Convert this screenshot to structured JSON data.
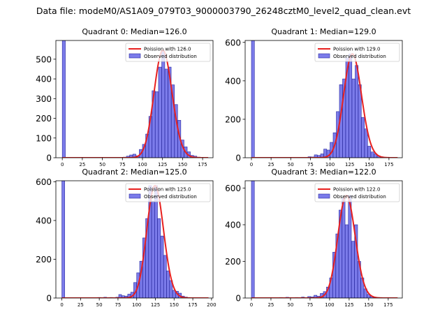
{
  "figure": {
    "title": "Data file: modeM0/AS1A09_079T03_9000003790_26248cztM0_level2_quad_clean.evt"
  },
  "colors": {
    "bar_fill": "#7b7bea",
    "bar_edge": "#2a2aa0",
    "poisson_line": "#e8201f"
  },
  "chart_data": [
    {
      "type": "bar",
      "title": "Quadrant 0: Median=126.0",
      "median": 126.0,
      "legend": {
        "line": "Poission with 126.0",
        "bars": "Observed distribution",
        "loc": "upper right"
      },
      "xlim": [
        -8,
        188
      ],
      "ylim": [
        0,
        595
      ],
      "xticks": [
        0,
        25,
        50,
        75,
        100,
        125,
        150,
        175
      ],
      "yticks": [
        0,
        100,
        200,
        300,
        400,
        500
      ],
      "bin_width": 3.8,
      "bins": [
        [
          0,
          600
        ],
        [
          76,
          3
        ],
        [
          80,
          8
        ],
        [
          84,
          14
        ],
        [
          88,
          18
        ],
        [
          92,
          10
        ],
        [
          96,
          42
        ],
        [
          100,
          68
        ],
        [
          104,
          120
        ],
        [
          108,
          210
        ],
        [
          112,
          340
        ],
        [
          116,
          335
        ],
        [
          120,
          460
        ],
        [
          124,
          545
        ],
        [
          128,
          450
        ],
        [
          132,
          460
        ],
        [
          136,
          370
        ],
        [
          140,
          270
        ],
        [
          144,
          190
        ],
        [
          148,
          90
        ],
        [
          152,
          55
        ],
        [
          156,
          30
        ],
        [
          160,
          12
        ],
        [
          164,
          8
        ],
        [
          168,
          3
        ]
      ]
    },
    {
      "type": "bar",
      "title": "Quadrant 1: Median=129.0",
      "median": 129.0,
      "legend": {
        "line": "Poission with 129.0",
        "bars": "Observed distribution",
        "loc": "upper right"
      },
      "xlim": [
        -8,
        192
      ],
      "ylim": [
        0,
        610
      ],
      "xticks": [
        0,
        25,
        50,
        75,
        100,
        125,
        150,
        175
      ],
      "yticks": [
        0,
        200,
        400,
        600
      ],
      "bin_width": 3.8,
      "bins": [
        [
          0,
          610
        ],
        [
          72,
          5
        ],
        [
          76,
          4
        ],
        [
          80,
          15
        ],
        [
          84,
          12
        ],
        [
          88,
          20
        ],
        [
          92,
          45
        ],
        [
          96,
          40
        ],
        [
          100,
          80
        ],
        [
          104,
          130
        ],
        [
          108,
          240
        ],
        [
          112,
          380
        ],
        [
          116,
          410
        ],
        [
          120,
          520
        ],
        [
          124,
          540
        ],
        [
          128,
          410
        ],
        [
          132,
          480
        ],
        [
          136,
          380
        ],
        [
          140,
          210
        ],
        [
          144,
          150
        ],
        [
          148,
          60
        ],
        [
          152,
          30
        ],
        [
          156,
          20
        ],
        [
          160,
          10
        ],
        [
          164,
          5
        ],
        [
          168,
          2
        ]
      ]
    },
    {
      "type": "bar",
      "title": "Quadrant 2: Median=125.0",
      "median": 125.0,
      "legend": {
        "line": "Poission with 125.0",
        "bars": "Observed distribution",
        "loc": "upper right"
      },
      "xlim": [
        -8,
        202
      ],
      "ylim": [
        0,
        605
      ],
      "xticks": [
        0,
        25,
        50,
        75,
        100,
        125,
        150,
        175,
        200
      ],
      "yticks": [
        0,
        200,
        400,
        600
      ],
      "bin_width": 3.8,
      "bins": [
        [
          0,
          605
        ],
        [
          48,
          3
        ],
        [
          56,
          4
        ],
        [
          64,
          3
        ],
        [
          72,
          4
        ],
        [
          76,
          18
        ],
        [
          80,
          12
        ],
        [
          84,
          10
        ],
        [
          88,
          20
        ],
        [
          92,
          30
        ],
        [
          96,
          80
        ],
        [
          100,
          130
        ],
        [
          104,
          190
        ],
        [
          108,
          310
        ],
        [
          112,
          410
        ],
        [
          116,
          580
        ],
        [
          120,
          500
        ],
        [
          124,
          580
        ],
        [
          128,
          410
        ],
        [
          132,
          320
        ],
        [
          136,
          220
        ],
        [
          140,
          140
        ],
        [
          144,
          90
        ],
        [
          148,
          40
        ],
        [
          152,
          35
        ],
        [
          156,
          25
        ],
        [
          160,
          10
        ],
        [
          164,
          5
        ]
      ]
    },
    {
      "type": "bar",
      "title": "Quadrant 3: Median=122.0",
      "median": 122.0,
      "legend": {
        "line": "Poission with 122.0",
        "bars": "Observed distribution",
        "loc": "upper right"
      },
      "xlim": [
        -8,
        193
      ],
      "ylim": [
        0,
        640
      ],
      "xticks": [
        0,
        25,
        50,
        75,
        100,
        125,
        150,
        175
      ],
      "yticks": [
        0,
        200,
        400,
        600
      ],
      "bin_width": 3.8,
      "bins": [
        [
          0,
          640
        ],
        [
          36,
          3
        ],
        [
          44,
          4
        ],
        [
          56,
          3
        ],
        [
          64,
          5
        ],
        [
          72,
          8
        ],
        [
          76,
          6
        ],
        [
          80,
          15
        ],
        [
          84,
          10
        ],
        [
          88,
          25
        ],
        [
          92,
          35
        ],
        [
          96,
          60
        ],
        [
          100,
          110
        ],
        [
          104,
          250
        ],
        [
          108,
          350
        ],
        [
          112,
          480
        ],
        [
          116,
          545
        ],
        [
          120,
          400
        ],
        [
          124,
          560
        ],
        [
          128,
          310
        ],
        [
          132,
          400
        ],
        [
          136,
          200
        ],
        [
          140,
          110
        ],
        [
          144,
          50
        ],
        [
          148,
          20
        ],
        [
          152,
          10
        ],
        [
          156,
          5
        ]
      ]
    }
  ]
}
